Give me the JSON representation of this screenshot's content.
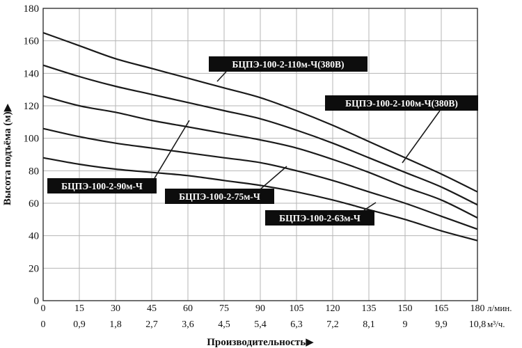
{
  "chart_data": {
    "type": "line",
    "xlabel": "Производительность▶",
    "ylabel": "Высота подъёма (м)▶",
    "x_unit_primary": "л/мин.",
    "x_unit_secondary": "м³/ч.",
    "xlim": [
      0,
      180
    ],
    "ylim": [
      0,
      180
    ],
    "grid": true,
    "x_ticks_primary": [
      "0",
      "15",
      "30",
      "45",
      "60",
      "75",
      "90",
      "105",
      "120",
      "135",
      "150",
      "165",
      "180"
    ],
    "x_ticks_secondary": [
      "0",
      "0,9",
      "1,8",
      "2,7",
      "3,6",
      "4,5",
      "5,4",
      "6,3",
      "7,2",
      "8,1",
      "9",
      "9,9",
      "10,8"
    ],
    "y_ticks": [
      "0",
      "20",
      "40",
      "60",
      "80",
      "100",
      "120",
      "140",
      "160",
      "180"
    ],
    "x": [
      0,
      15,
      30,
      45,
      60,
      75,
      90,
      105,
      120,
      135,
      150,
      165,
      180
    ],
    "series": [
      {
        "name": "БЦПЭ-100-2-110м-Ч(380В)",
        "values": [
          165,
          157,
          149,
          143,
          137,
          131,
          125,
          117,
          108,
          98,
          88,
          78,
          67
        ]
      },
      {
        "name": "БЦПЭ-100-2-100м-Ч(380В)",
        "values": [
          145,
          138,
          132,
          127,
          122,
          117,
          112,
          105,
          97,
          88,
          79,
          70,
          59
        ]
      },
      {
        "name": "БЦПЭ-100-2-90м-Ч",
        "values": [
          126,
          120,
          116,
          111,
          107,
          103,
          99,
          94,
          87,
          79,
          70,
          62,
          51
        ]
      },
      {
        "name": "БЦПЭ-100-2-75м-Ч",
        "values": [
          106,
          101,
          97,
          94,
          91,
          88,
          85,
          80,
          74,
          67,
          60,
          52,
          44
        ]
      },
      {
        "name": "БЦПЭ-100-2-63м-Ч",
        "values": [
          88,
          84,
          81,
          79,
          77,
          74,
          71,
          67,
          62,
          56,
          50,
          43,
          37
        ]
      }
    ]
  }
}
